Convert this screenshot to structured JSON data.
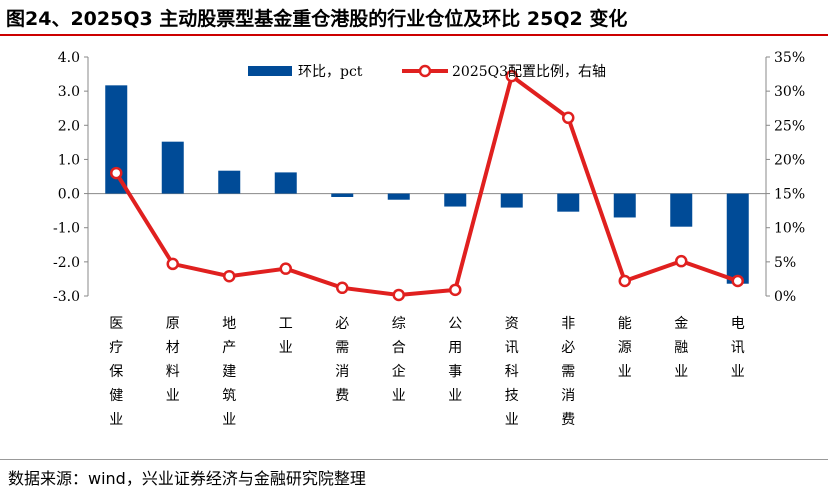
{
  "title": "图24、2025Q3 主动股票型基金重仓港股的行业仓位及环比 25Q2 变化",
  "source": "数据来源：wind，兴业证券经济与金融研究院整理",
  "chart_data": {
    "type": "bar+line",
    "categories": [
      "医疗保健业",
      "原材料业",
      "地产建筑业",
      "工业",
      "必需消费",
      "综合企业",
      "公用事业",
      "资讯科技业",
      "非必需消费",
      "能源业",
      "金融业",
      "电讯业"
    ],
    "series": [
      {
        "name": "环比，pct",
        "type": "bar",
        "axis": "left",
        "color": "#004b97",
        "values": [
          3.17,
          1.52,
          0.67,
          0.62,
          -0.1,
          -0.18,
          -0.38,
          -0.41,
          -0.53,
          -0.7,
          -0.97,
          -2.64
        ]
      },
      {
        "name": "2025Q3配置比例，右轴",
        "type": "line",
        "axis": "right",
        "color": "#e0201f",
        "values": [
          18.0,
          4.7,
          2.9,
          4.0,
          1.2,
          0.15,
          0.9,
          32.2,
          26.1,
          2.2,
          5.1,
          2.2
        ]
      }
    ],
    "left_axis": {
      "ylim": [
        -3,
        4
      ],
      "ticks": [
        "4.0",
        "3.0",
        "2.0",
        "1.0",
        "0.0",
        "-1.0",
        "-2.0",
        "-3.0"
      ]
    },
    "right_axis": {
      "ylim": [
        0,
        35
      ],
      "ticks": [
        "35%",
        "30%",
        "25%",
        "20%",
        "15%",
        "10%",
        "5%",
        "0%"
      ]
    },
    "legend": "top-center",
    "grid": false
  }
}
